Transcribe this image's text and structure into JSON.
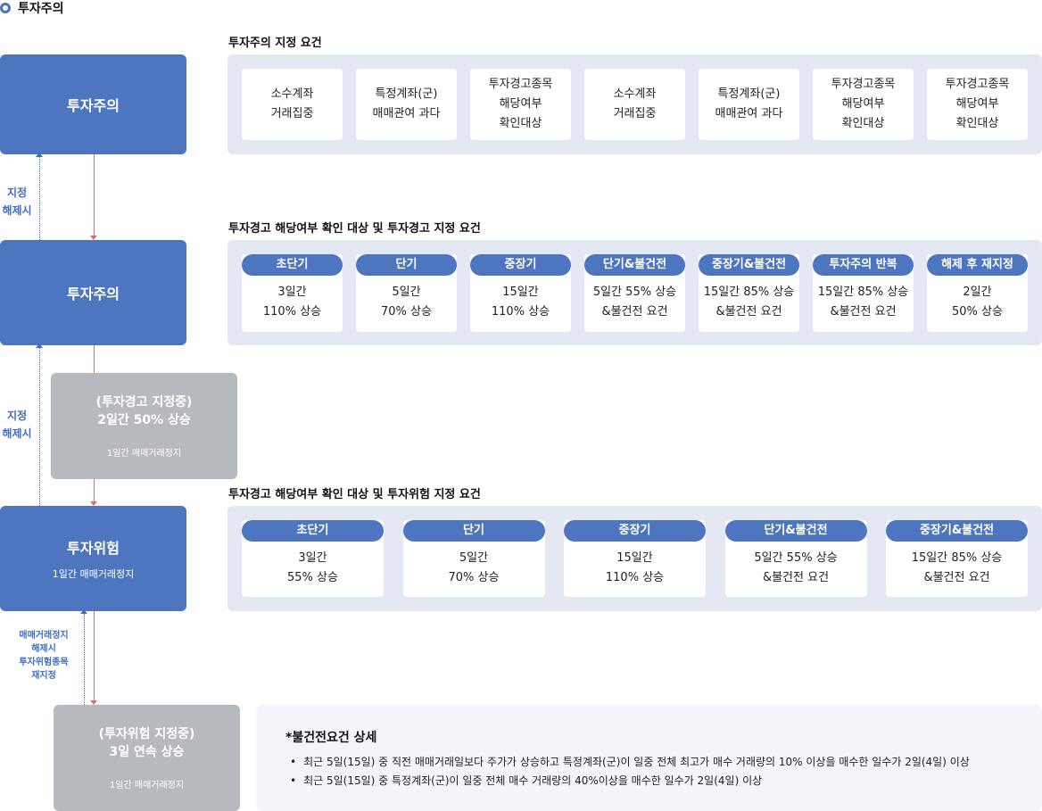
{
  "header": {
    "title": "투자주의"
  },
  "flow": {
    "box1": {
      "title": "투자주의"
    },
    "box2": {
      "title": "투자주의"
    },
    "box3": {
      "title": "투자위험",
      "sub": "1일간 매매거래정지"
    },
    "gray1": {
      "line1": "(투자경고 지정중)",
      "line2": "2일간 50% 상승",
      "sub": "1일간 매매거래정지"
    },
    "gray2": {
      "line1": "(투자위험 지정중)",
      "line2": "3일 연속 상승",
      "sub": "1일간 매매거래정지"
    },
    "label1": {
      "l1": "지정",
      "l2": "해제시"
    },
    "label2": {
      "l1": "지정",
      "l2": "해제시"
    },
    "label3": {
      "l1": "매매거래정지",
      "l2": "해제시",
      "l3": "투자위험종목",
      "l4": "재지정"
    }
  },
  "section1": {
    "title": "투자주의 지정 요건",
    "cards": [
      {
        "lines": [
          "소수계좌",
          "거래집중"
        ]
      },
      {
        "lines": [
          "특정계좌(군)",
          "매매관여 과다"
        ]
      },
      {
        "lines": [
          "투자경고종목",
          "해당여부",
          "확인대상"
        ]
      },
      {
        "lines": [
          "소수계좌",
          "거래집중"
        ]
      },
      {
        "lines": [
          "특정계좌(군)",
          "매매관여 과다"
        ]
      },
      {
        "lines": [
          "투자경고종목",
          "해당여부",
          "확인대상"
        ]
      },
      {
        "lines": [
          "투자경고종목",
          "해당여부",
          "확인대상"
        ]
      }
    ]
  },
  "section2": {
    "title": "투자경고 해당여부 확인 대상 및 투자경고 지정 요건",
    "cards": [
      {
        "label": "초단기",
        "lines": [
          "3일간",
          "110% 상승"
        ]
      },
      {
        "label": "단기",
        "lines": [
          "5일간",
          "70% 상승"
        ]
      },
      {
        "label": "중장기",
        "lines": [
          "15일간",
          "110% 상승"
        ]
      },
      {
        "label": "단기&불건전",
        "lines": [
          "5일간 55% 상승",
          "&불건전 요건"
        ]
      },
      {
        "label": "중장기&불건전",
        "lines": [
          "15일간 85% 상승",
          "&불건전 요건"
        ]
      },
      {
        "label": "투자주의 반복",
        "lines": [
          "15일간 85% 상승",
          "&불건전 요건"
        ]
      },
      {
        "label": "해제 후 재지정",
        "lines": [
          "2일간",
          "50% 상승"
        ]
      }
    ]
  },
  "section3": {
    "title": "투자경고 해당여부 확인 대상 및 투자위험 지정 요건",
    "cards": [
      {
        "label": "초단기",
        "lines": [
          "3일간",
          "55% 상승"
        ]
      },
      {
        "label": "단기",
        "lines": [
          "5일간",
          "70% 상승"
        ]
      },
      {
        "label": "중장기",
        "lines": [
          "15일간",
          "110% 상승"
        ]
      },
      {
        "label": "단기&불건전",
        "lines": [
          "5일간 55% 상승",
          "&불건전 요건"
        ]
      },
      {
        "label": "중장기&불건전",
        "lines": [
          "15일간 85% 상승",
          "&불건전 요건"
        ]
      }
    ]
  },
  "note": {
    "title": "*불건전요건 상세",
    "items": [
      "최근 5일(15일) 중 직전 매매거래일보다 주가가 상승하고 특정계좌(군)이 일중 전체 최고가 매수 거래량의 10% 이상을 매수한 일수가 2일(4일) 이상",
      "최근 5일(15일) 중 특정계좌(군)이 일중 전체 매수 거래량의 40%이상을 매수한 일수가 2일(4일) 이상"
    ]
  },
  "colors": {
    "accent": "#4e76c0",
    "gray": "#b6b9be",
    "panel": "#e3e8f2",
    "arrow_red": "#e46a6a",
    "arrow_blue": "#3f6ec2"
  }
}
